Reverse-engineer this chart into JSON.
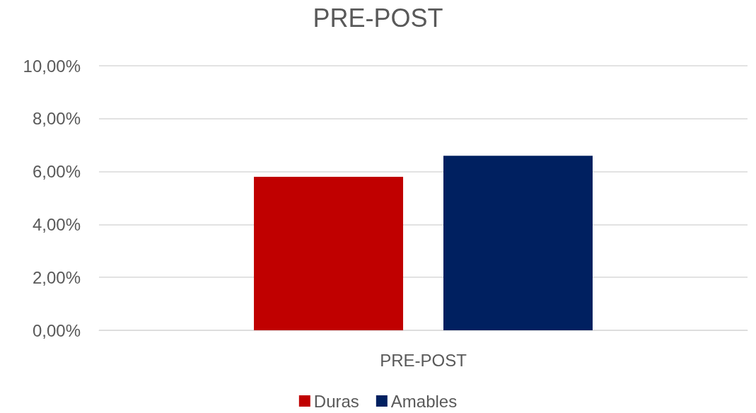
{
  "chart_data": {
    "type": "bar",
    "title": "PRE-POST",
    "categories": [
      "PRE-POST"
    ],
    "series": [
      {
        "name": "Duras",
        "color": "#c00000",
        "values": [
          5.8
        ]
      },
      {
        "name": "Amables",
        "color": "#002060",
        "values": [
          6.6
        ]
      }
    ],
    "ylim": [
      0,
      10
    ],
    "yticks": [
      {
        "value": 0,
        "label": "0,00%"
      },
      {
        "value": 2,
        "label": "2,00%"
      },
      {
        "value": 4,
        "label": "4,00%"
      },
      {
        "value": 6,
        "label": "6,00%"
      },
      {
        "value": 8,
        "label": "8,00%"
      },
      {
        "value": 10,
        "label": "10,00%"
      }
    ],
    "grid": "y",
    "legend": "bottom"
  }
}
